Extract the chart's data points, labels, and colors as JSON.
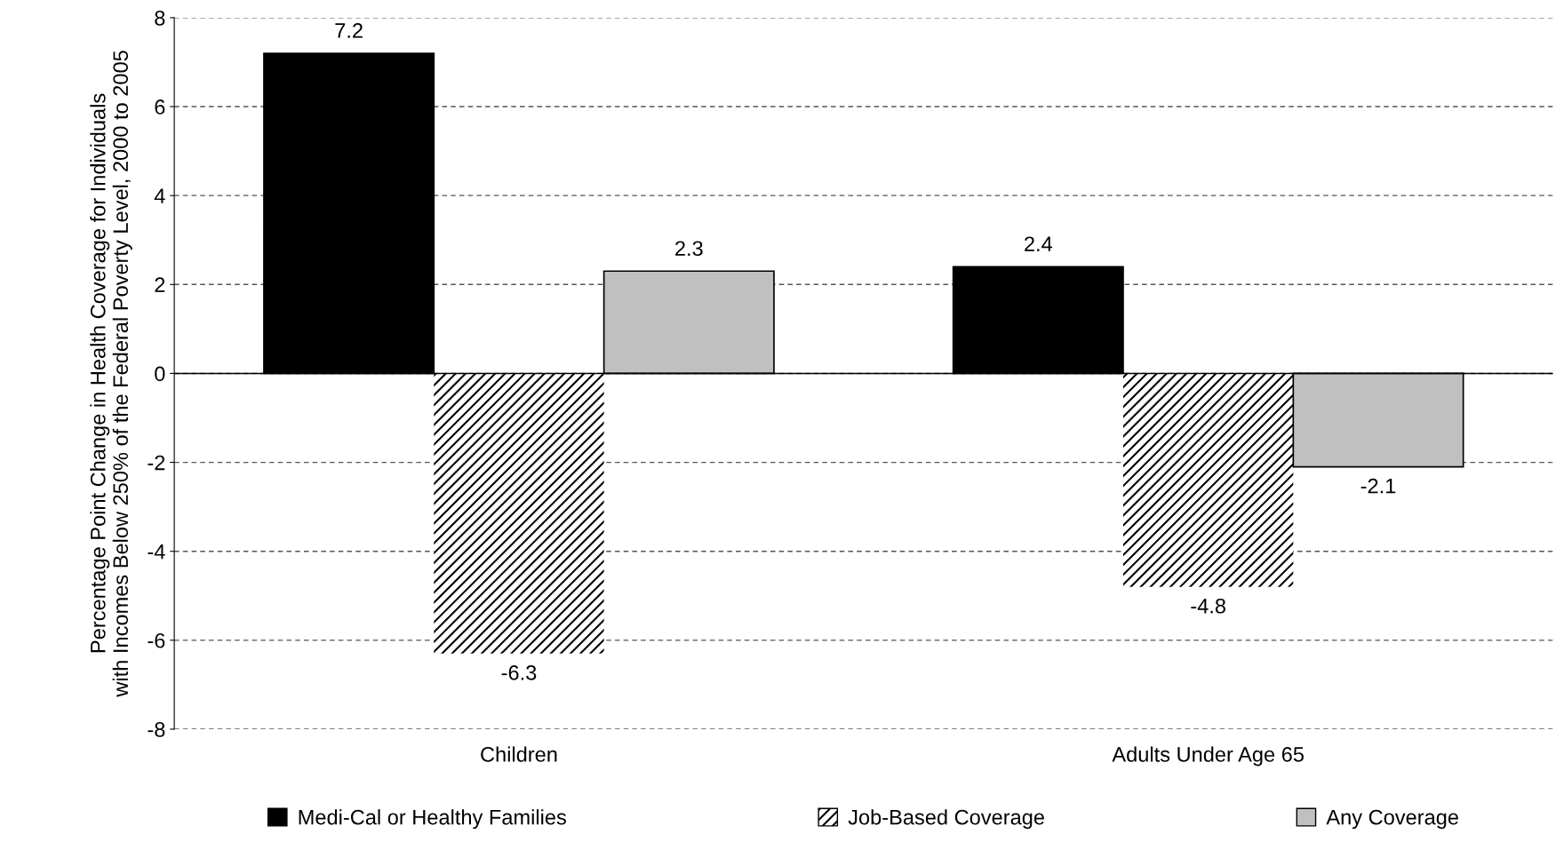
{
  "chart_data": {
    "type": "bar",
    "ylabel": "Percentage Point Change in Health Coverage for Individuals\nwith Incomes Below 250% of the Federal Poverty Level, 2000 to 2005",
    "categories": [
      "Children",
      "Adults Under Age 65"
    ],
    "series": [
      {
        "name": "Medi-Cal or Healthy Families",
        "color": "#000000",
        "values": [
          7.2,
          2.4
        ]
      },
      {
        "name": "Job-Based Coverage",
        "color": "#ffffff",
        "values": [
          -6.3,
          -4.8
        ]
      },
      {
        "name": "Any Coverage",
        "color": "#c0c0c0",
        "values": [
          2.3,
          -2.1
        ]
      }
    ],
    "ylim": [
      -8,
      8
    ],
    "yticks": [
      -8,
      -6,
      -4,
      -2,
      0,
      2,
      4,
      6,
      8
    ],
    "grid": "y",
    "legend": "bottom",
    "data_labels": true
  }
}
